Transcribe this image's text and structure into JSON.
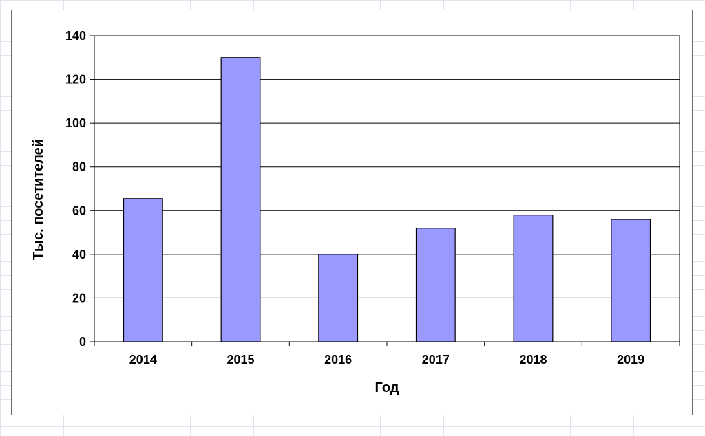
{
  "chart_data": {
    "type": "bar",
    "title": "",
    "xlabel": "Год",
    "ylabel": "Тыс. посетителей",
    "categories": [
      "2014",
      "2015",
      "2016",
      "2017",
      "2018",
      "2019"
    ],
    "values": [
      65.5,
      130,
      40,
      52,
      58,
      56
    ],
    "ylim": [
      0,
      140
    ],
    "yticks": [
      0,
      20,
      40,
      60,
      80,
      100,
      120,
      140
    ],
    "grid": true,
    "legend": "none",
    "bar_color": "#9999ff",
    "bar_edge_color": "#000000"
  }
}
